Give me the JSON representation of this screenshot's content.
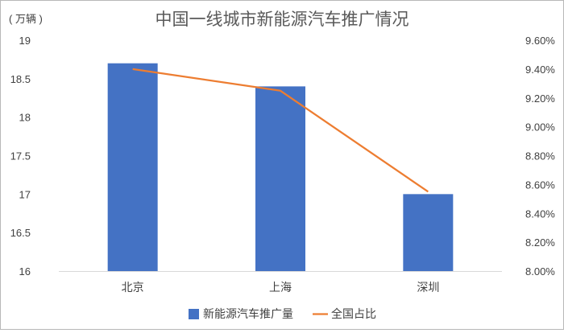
{
  "chart_data": {
    "type": "bar+line",
    "title": "中国一线城市新能源汽车推广情况",
    "y_unit_label": "( 万辆 )",
    "categories": [
      "北京",
      "上海",
      "深圳"
    ],
    "bar_series": {
      "name": "新能源汽车推广量",
      "values": [
        18.7,
        18.4,
        17.0
      ],
      "color": "#4472C4"
    },
    "line_series": {
      "name": "全国占比",
      "values": [
        9.4,
        9.25,
        8.55
      ],
      "color": "#ED7D31"
    },
    "y_left": {
      "range": [
        16,
        19
      ],
      "ticks": [
        "16",
        "16.5",
        "17",
        "17.5",
        "18",
        "18.5",
        "19"
      ],
      "tick_values": [
        16,
        16.5,
        17,
        17.5,
        18,
        18.5,
        19
      ]
    },
    "y_right": {
      "range": [
        8.0,
        9.6
      ],
      "ticks": [
        "8.00%",
        "8.20%",
        "8.40%",
        "8.60%",
        "8.80%",
        "9.00%",
        "9.20%",
        "9.40%",
        "9.60%"
      ],
      "tick_values": [
        8.0,
        8.2,
        8.4,
        8.6,
        8.8,
        9.0,
        9.2,
        9.4,
        9.6
      ]
    },
    "grid": false,
    "legend_position": "bottom"
  }
}
